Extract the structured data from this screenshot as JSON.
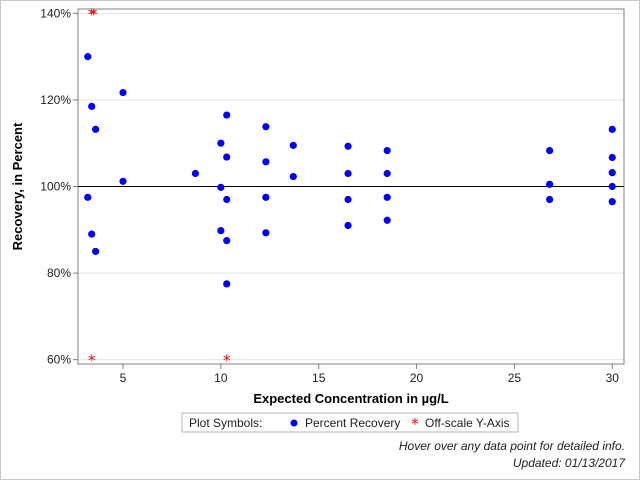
{
  "chart_data": {
    "type": "scatter",
    "xlabel": "Expected Concentration in µg/L",
    "ylabel": "Recovery, in Percent",
    "xlim": [
      2.7,
      30.6
    ],
    "ylim": [
      59,
      141
    ],
    "x_ticks": [
      5,
      10,
      15,
      20,
      25,
      30
    ],
    "y_ticks": [
      60,
      80,
      100,
      120,
      140
    ],
    "y_tick_labels": [
      "60%",
      "80%",
      "100%",
      "120%",
      "140%"
    ],
    "reference_line_y": 100,
    "grid": "horizontal at y ticks",
    "legend_placement": "bottom-center",
    "legend": {
      "title": "Plot Symbols:",
      "entries": [
        {
          "label": "Percent Recovery",
          "symbol": "dot",
          "color": "#0000ff"
        },
        {
          "label": "Off-scale Y-Axis",
          "symbol": "asterisk",
          "color": "#ff0000"
        }
      ]
    },
    "series": [
      {
        "name": "Percent Recovery",
        "color": "#0000ff",
        "points": [
          [
            3.2,
            130
          ],
          [
            3.2,
            97.5
          ],
          [
            3.4,
            118.5
          ],
          [
            3.4,
            89
          ],
          [
            3.6,
            113.2
          ],
          [
            3.6,
            85
          ],
          [
            5.0,
            121.7
          ],
          [
            5.0,
            101.2
          ],
          [
            8.7,
            103
          ],
          [
            10.0,
            110
          ],
          [
            10.0,
            99.8
          ],
          [
            10.0,
            89.8
          ],
          [
            10.3,
            116.5
          ],
          [
            10.3,
            106.8
          ],
          [
            10.3,
            97
          ],
          [
            10.3,
            87.5
          ],
          [
            10.3,
            77.5
          ],
          [
            12.3,
            113.8
          ],
          [
            12.3,
            105.7
          ],
          [
            12.3,
            97.5
          ],
          [
            12.3,
            89.3
          ],
          [
            13.7,
            109.5
          ],
          [
            13.7,
            102.3
          ],
          [
            16.5,
            109.3
          ],
          [
            16.5,
            103
          ],
          [
            16.5,
            97
          ],
          [
            16.5,
            91
          ],
          [
            18.5,
            108.3
          ],
          [
            18.5,
            103
          ],
          [
            18.5,
            97.5
          ],
          [
            18.5,
            92.2
          ],
          [
            26.8,
            108.3
          ],
          [
            26.8,
            100.5
          ],
          [
            26.8,
            97
          ],
          [
            30.0,
            113.2
          ],
          [
            30.0,
            106.7
          ],
          [
            30.0,
            103.2
          ],
          [
            30.0,
            100
          ],
          [
            30.0,
            96.5
          ]
        ]
      },
      {
        "name": "Off-scale Y-Axis",
        "color": "#ff0000",
        "points": [
          [
            3.4,
            140
          ],
          [
            3.5,
            140
          ],
          [
            3.4,
            60
          ],
          [
            10.3,
            60
          ]
        ]
      }
    ]
  },
  "notes": {
    "hover": "Hover over any data point for detailed info.",
    "updated": "Updated: 01/13/2017"
  }
}
